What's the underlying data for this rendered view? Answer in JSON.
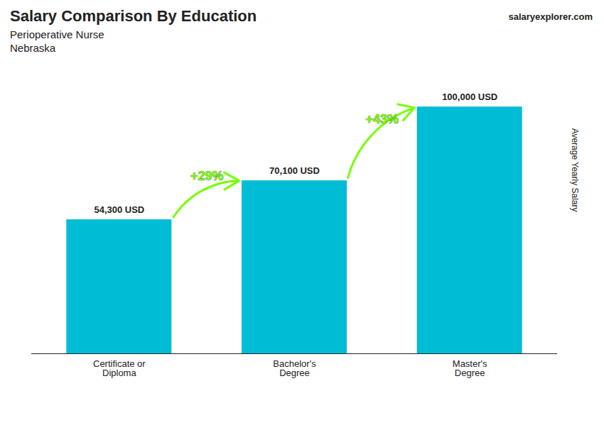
{
  "chart_data": {
    "type": "bar",
    "title": "Salary Comparison By Education",
    "subtitle": [
      "Perioperative Nurse",
      "Nebraska"
    ],
    "source": "salaryexplorer.com",
    "y_label": "Average Yearly Salary",
    "categories": [
      "Certificate or\nDiploma",
      "Bachelor's\nDegree",
      "Master's\nDegree"
    ],
    "values": [
      54300,
      70100,
      100000
    ],
    "value_labels": [
      "54,300 USD",
      "70,100 USD",
      "100,000 USD"
    ],
    "data_labels": true,
    "color": "#00bcd4",
    "annotations": [
      {
        "text": "+29%",
        "color": "#76ff03"
      },
      {
        "text": "+43%",
        "color": "#76ff03"
      }
    ],
    "ylim": [
      0,
      115000
    ],
    "tick_labels": "x",
    "grid": false
  }
}
